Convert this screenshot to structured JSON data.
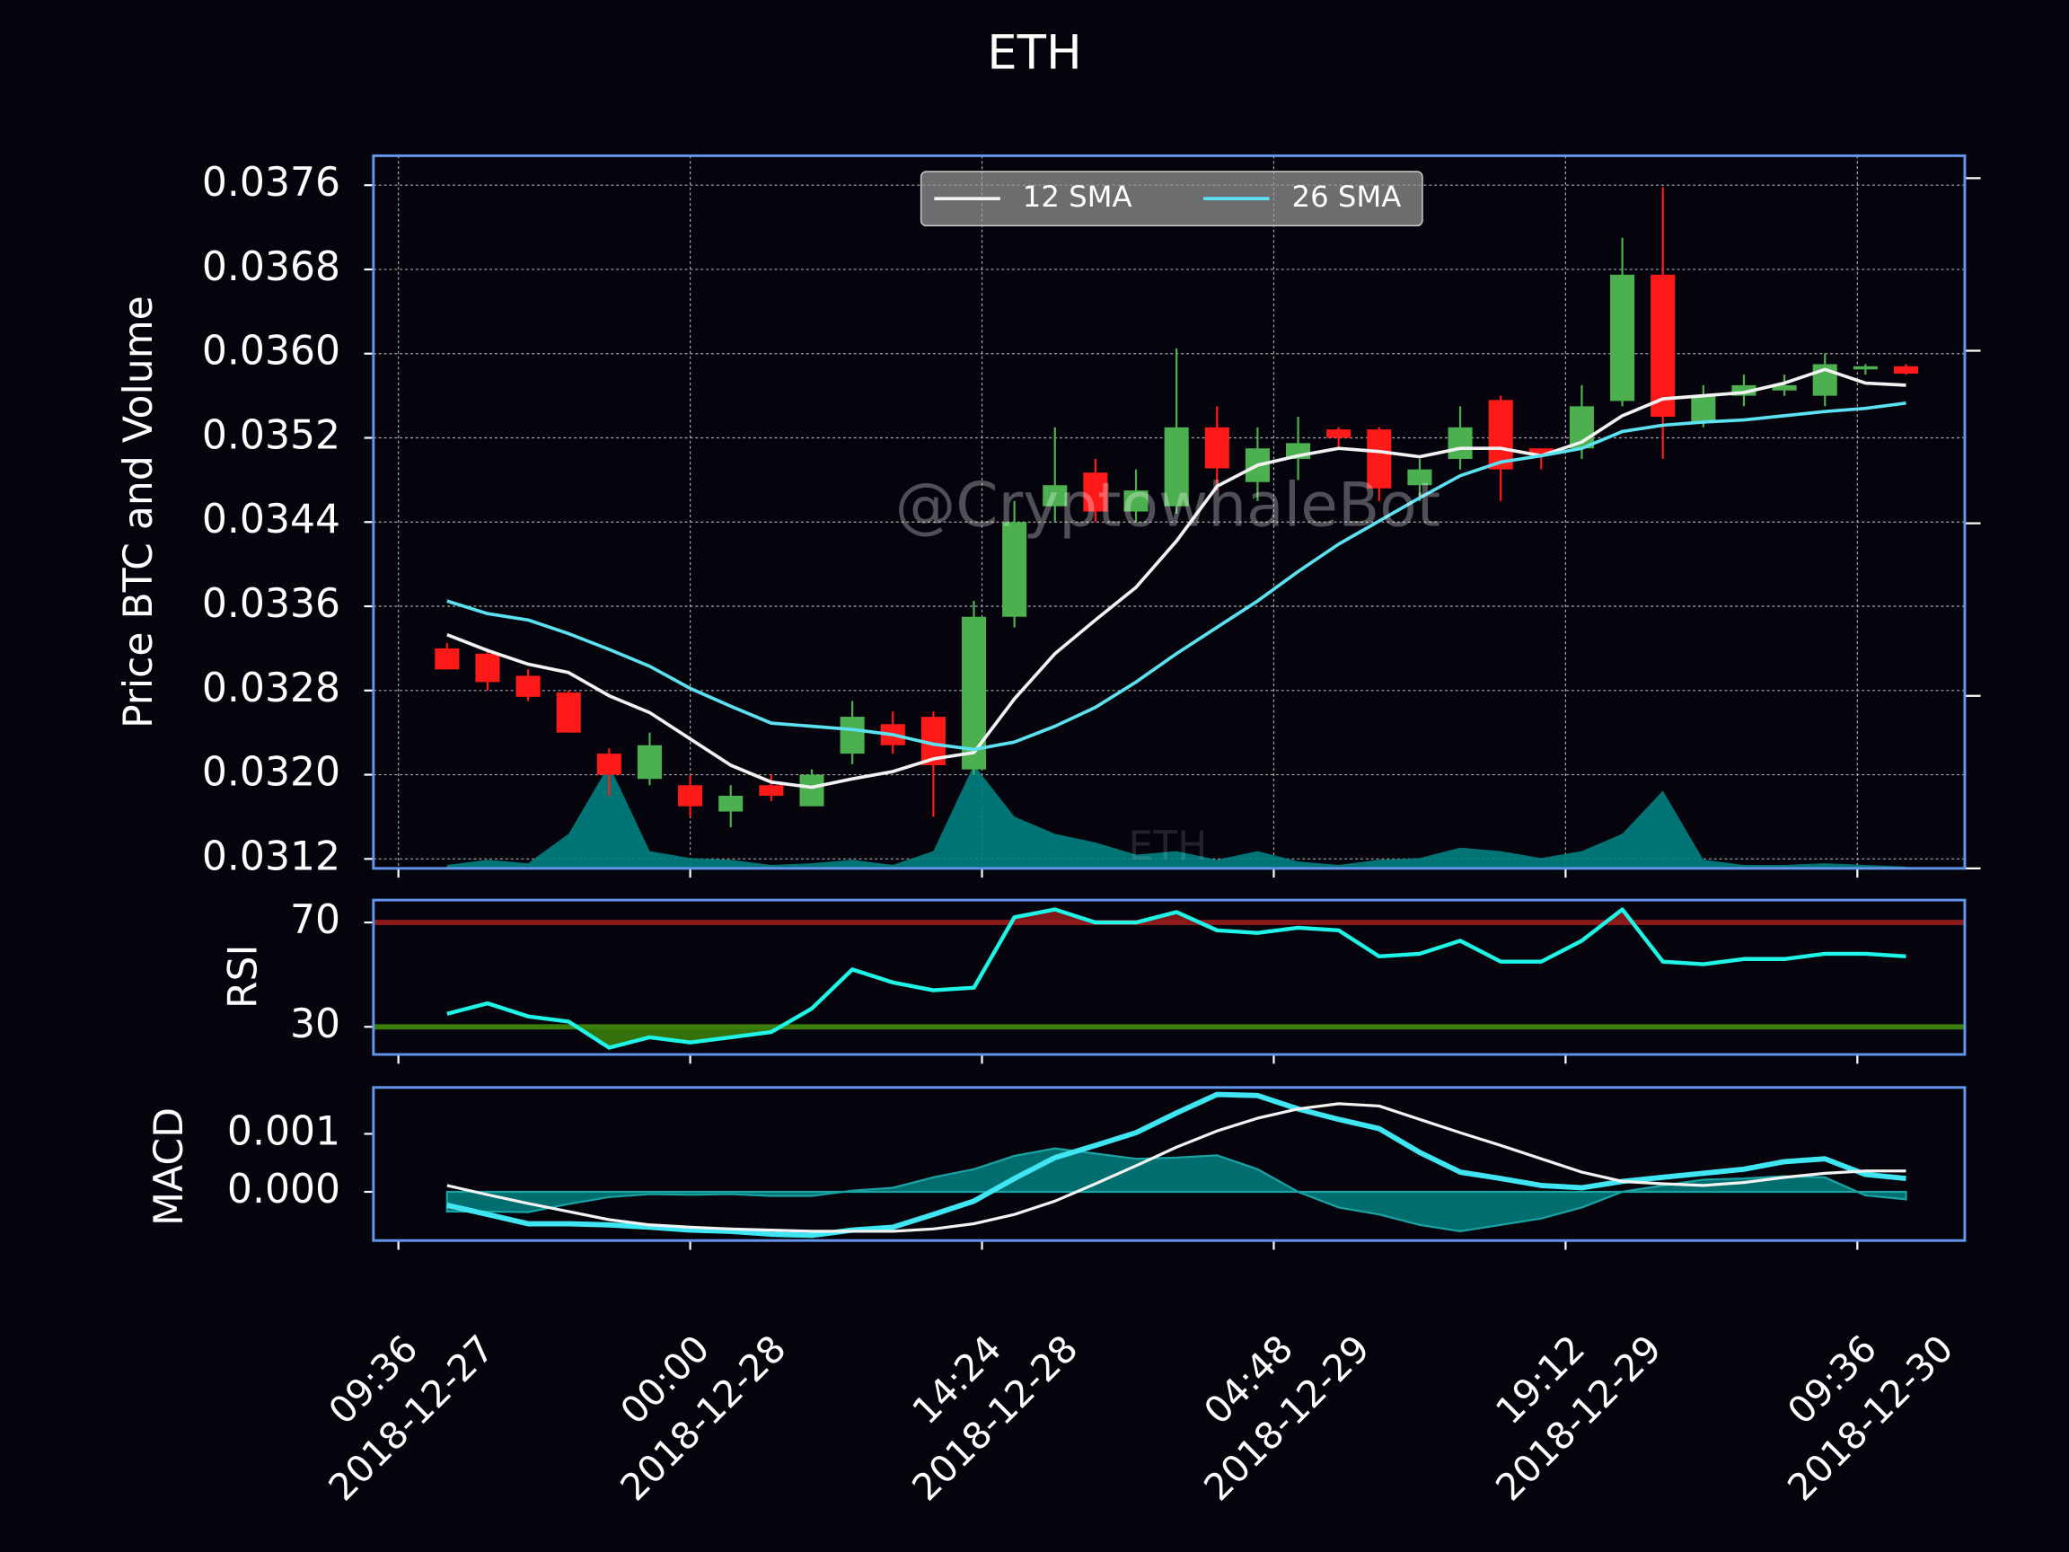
{
  "chart_data": [
    {
      "type": "candlestick",
      "title": "ETH",
      "ylabel": "Price BTC and Volume",
      "watermarks": [
        "@CryptowhaleBot",
        "ETH"
      ],
      "x": [
        "2018-12-27 12:00",
        "2018-12-27 14:00",
        "2018-12-27 16:00",
        "2018-12-27 18:00",
        "2018-12-27 20:00",
        "2018-12-27 22:00",
        "2018-12-28 00:00",
        "2018-12-28 02:00",
        "2018-12-28 04:00",
        "2018-12-28 06:00",
        "2018-12-28 08:00",
        "2018-12-28 10:00",
        "2018-12-28 12:00",
        "2018-12-28 14:00",
        "2018-12-28 16:00",
        "2018-12-28 18:00",
        "2018-12-28 20:00",
        "2018-12-28 22:00",
        "2018-12-29 00:00",
        "2018-12-29 02:00",
        "2018-12-29 04:00",
        "2018-12-29 06:00",
        "2018-12-29 08:00",
        "2018-12-29 10:00",
        "2018-12-29 12:00",
        "2018-12-29 14:00",
        "2018-12-29 16:00",
        "2018-12-29 18:00",
        "2018-12-29 20:00",
        "2018-12-29 22:00",
        "2018-12-30 00:00",
        "2018-12-30 02:00",
        "2018-12-30 04:00",
        "2018-12-30 06:00",
        "2018-12-30 08:00",
        "2018-12-30 10:00",
        "2018-12-30 12:00"
      ],
      "open": [
        0.0332,
        0.03315,
        0.03294,
        0.03278,
        0.0322,
        0.03196,
        0.0319,
        0.03165,
        0.0319,
        0.0317,
        0.0322,
        0.03248,
        0.03255,
        0.03205,
        0.0335,
        0.03455,
        0.03487,
        0.0345,
        0.03455,
        0.0353,
        0.03478,
        0.035,
        0.03528,
        0.03528,
        0.03475,
        0.035,
        0.03556,
        0.0351,
        0.0351,
        0.03555,
        0.03675,
        0.03535,
        0.0356,
        0.03565,
        0.0356,
        0.03585,
        0.03588
      ],
      "high": [
        0.03325,
        0.0332,
        0.033,
        0.0328,
        0.03225,
        0.0324,
        0.032,
        0.0319,
        0.032,
        0.03205,
        0.0327,
        0.0326,
        0.0326,
        0.03365,
        0.0346,
        0.0353,
        0.035,
        0.0349,
        0.03605,
        0.0355,
        0.0353,
        0.0354,
        0.0353,
        0.0353,
        0.035,
        0.0355,
        0.0356,
        0.0351,
        0.0357,
        0.0371,
        0.03758,
        0.0357,
        0.0358,
        0.0358,
        0.036,
        0.0359,
        0.0359
      ],
      "low": [
        0.033,
        0.0328,
        0.0327,
        0.0324,
        0.0318,
        0.0319,
        0.0316,
        0.0315,
        0.03175,
        0.0317,
        0.0321,
        0.0322,
        0.0316,
        0.032,
        0.0334,
        0.0344,
        0.0344,
        0.0344,
        0.03448,
        0.0347,
        0.0346,
        0.0348,
        0.0351,
        0.0346,
        0.0346,
        0.0349,
        0.0346,
        0.0349,
        0.035,
        0.0355,
        0.035,
        0.0353,
        0.0355,
        0.0356,
        0.0355,
        0.0358,
        0.0358
      ],
      "close": [
        0.033,
        0.03288,
        0.03274,
        0.0324,
        0.032,
        0.03228,
        0.0317,
        0.0318,
        0.0318,
        0.032,
        0.03255,
        0.03228,
        0.03209,
        0.0335,
        0.0344,
        0.03475,
        0.0345,
        0.0347,
        0.0353,
        0.03491,
        0.0351,
        0.03515,
        0.0352,
        0.03472,
        0.0349,
        0.0353,
        0.0349,
        0.03505,
        0.0355,
        0.03675,
        0.0354,
        0.0356,
        0.0357,
        0.0357,
        0.0359,
        0.03588,
        0.03581
      ],
      "up_color": "#4caf50",
      "down_color": "#ff1a1a",
      "volume": {
        "axis": "y2",
        "color": "#008080",
        "values": [
          0.02,
          0.05,
          0.03,
          0.2,
          0.6,
          0.1,
          0.06,
          0.05,
          0.02,
          0.03,
          0.05,
          0.02,
          0.1,
          0.6,
          0.3,
          0.2,
          0.15,
          0.08,
          0.1,
          0.05,
          0.1,
          0.04,
          0.02,
          0.05,
          0.06,
          0.12,
          0.1,
          0.06,
          0.1,
          0.2,
          0.45,
          0.05,
          0.02,
          0.02,
          0.03,
          0.02,
          0.01
        ]
      },
      "series": [
        {
          "name": "12 SMA",
          "color": "#f2f2f2",
          "values": [
            0.03333,
            0.03318,
            0.03305,
            0.03297,
            0.03275,
            0.03259,
            0.03234,
            0.03209,
            0.03193,
            0.03188,
            0.03196,
            0.03203,
            0.03215,
            0.03221,
            0.03272,
            0.03315,
            0.03347,
            0.03378,
            0.03422,
            0.03474,
            0.03494,
            0.03503,
            0.0351,
            0.03507,
            0.03502,
            0.0351,
            0.0351,
            0.03503,
            0.03516,
            0.03541,
            0.03557,
            0.0356,
            0.03563,
            0.03572,
            0.03585,
            0.03572,
            0.0357
          ]
        },
        {
          "name": "26 SMA",
          "color": "#5ce1f0",
          "values": [
            0.03365,
            0.03353,
            0.03347,
            0.03334,
            0.03319,
            0.03303,
            0.03282,
            0.03265,
            0.03249,
            0.03246,
            0.03243,
            0.03238,
            0.03229,
            0.03224,
            0.03231,
            0.03246,
            0.03264,
            0.03288,
            0.03315,
            0.0334,
            0.03365,
            0.03393,
            0.03419,
            0.03441,
            0.03463,
            0.03484,
            0.03497,
            0.03503,
            0.0351,
            0.03526,
            0.03532,
            0.03535,
            0.03537,
            0.03541,
            0.03545,
            0.03548,
            0.03553
          ]
        }
      ],
      "xlim": [
        "2018-12-27 08:22",
        "2018-12-30 14:54"
      ],
      "xticks": [
        {
          "value": "2018-12-27 09:36",
          "label": [
            "09:36",
            "2018-12-27"
          ]
        },
        {
          "value": "2018-12-28 00:00",
          "label": [
            "00:00",
            "2018-12-28"
          ]
        },
        {
          "value": "2018-12-28 14:24",
          "label": [
            "14:24",
            "2018-12-28"
          ]
        },
        {
          "value": "2018-12-29 04:48",
          "label": [
            "04:48",
            "2018-12-29"
          ]
        },
        {
          "value": "2018-12-29 19:12",
          "label": [
            "19:12",
            "2018-12-29"
          ]
        },
        {
          "value": "2018-12-30 09:36",
          "label": [
            "09:36",
            "2018-12-30"
          ]
        }
      ],
      "ylim": [
        0.03111,
        0.03788
      ],
      "yticks": [
        0.0312,
        {
          "value": 0.032,
          "label": "0.0320"
        },
        0.0328,
        0.0336,
        0.0344,
        0.0352,
        {
          "value": 0.036,
          "label": "0.0360"
        },
        0.0368,
        0.0376
      ],
      "y2lim": [
        0,
        4.13
      ],
      "y2ticks": [
        0,
        1,
        2,
        3,
        4
      ],
      "grid": true,
      "legend": "upper center"
    },
    {
      "type": "line",
      "ylabel": "RSI",
      "series": [
        {
          "color": "#1ef5e6",
          "values": [
            35,
            39,
            34,
            32,
            22,
            26,
            24,
            26,
            28,
            37,
            52,
            47,
            44,
            45,
            72,
            75,
            70,
            70,
            74,
            67,
            66,
            68,
            67,
            57,
            58,
            63,
            55,
            55,
            63,
            75,
            55,
            54,
            56,
            56,
            58,
            58,
            57
          ]
        }
      ],
      "hlines": [
        {
          "value": 70,
          "color": "#8b1a1a"
        },
        {
          "value": 30,
          "color": "#3a7d0a"
        }
      ],
      "ylim": [
        19.4,
        78.6
      ],
      "yticks": [
        30,
        70
      ]
    },
    {
      "type": "line",
      "ylabel": "MACD",
      "series": [
        {
          "color": "#3fe6f2",
          "values": [
            -0.00023,
            -0.00039,
            -0.00055,
            -0.00055,
            -0.00057,
            -0.00061,
            -0.00066,
            -0.00068,
            -0.00073,
            -0.00075,
            -0.00066,
            -0.00061,
            -0.00039,
            -0.00016,
            0.00023,
            0.00059,
            0.0008,
            0.00102,
            0.00136,
            0.00168,
            0.00166,
            0.00143,
            0.00125,
            0.00109,
            0.00068,
            0.00034,
            0.00023,
            0.00011,
            7e-05,
            0.00018,
            0.00025,
            0.00032,
            0.00039,
            0.00052,
            0.00057,
            0.0003,
            0.00023
          ]
        },
        {
          "color": "#f2f2f2",
          "values": [
            0.00011,
            -5e-05,
            -0.0002,
            -0.00034,
            -0.00048,
            -0.00057,
            -0.00061,
            -0.00064,
            -0.00066,
            -0.00068,
            -0.00068,
            -0.00068,
            -0.00064,
            -0.00055,
            -0.00039,
            -0.00016,
            0.00014,
            0.00045,
            0.00077,
            0.00105,
            0.00127,
            0.00143,
            0.00152,
            0.00148,
            0.00125,
            0.00102,
            0.0008,
            0.00057,
            0.00034,
            0.00018,
            0.00014,
            0.00011,
            0.00016,
            0.00025,
            0.00032,
            0.00036,
            0.00036
          ]
        }
      ],
      "histogram": {
        "color": "#008080",
        "values": [
          -0.00034,
          -0.00034,
          -0.00035,
          -0.00021,
          -9e-05,
          -4e-05,
          -5e-05,
          -4e-05,
          -7e-05,
          -7e-05,
          2e-05,
          7e-05,
          0.00025,
          0.00039,
          0.00062,
          0.00075,
          0.00066,
          0.00057,
          0.00059,
          0.00063,
          0.00039,
          0.0,
          -0.00027,
          -0.00039,
          -0.00057,
          -0.00068,
          -0.00057,
          -0.00046,
          -0.00027,
          0.0,
          0.00011,
          0.00021,
          0.00023,
          0.00027,
          0.00025,
          -6e-05,
          -0.00013
        ]
      },
      "ylim": [
        -0.00084,
        0.0018
      ],
      "yticks": [
        {
          "value": 0,
          "label": "0.000"
        },
        0.001
      ]
    }
  ]
}
